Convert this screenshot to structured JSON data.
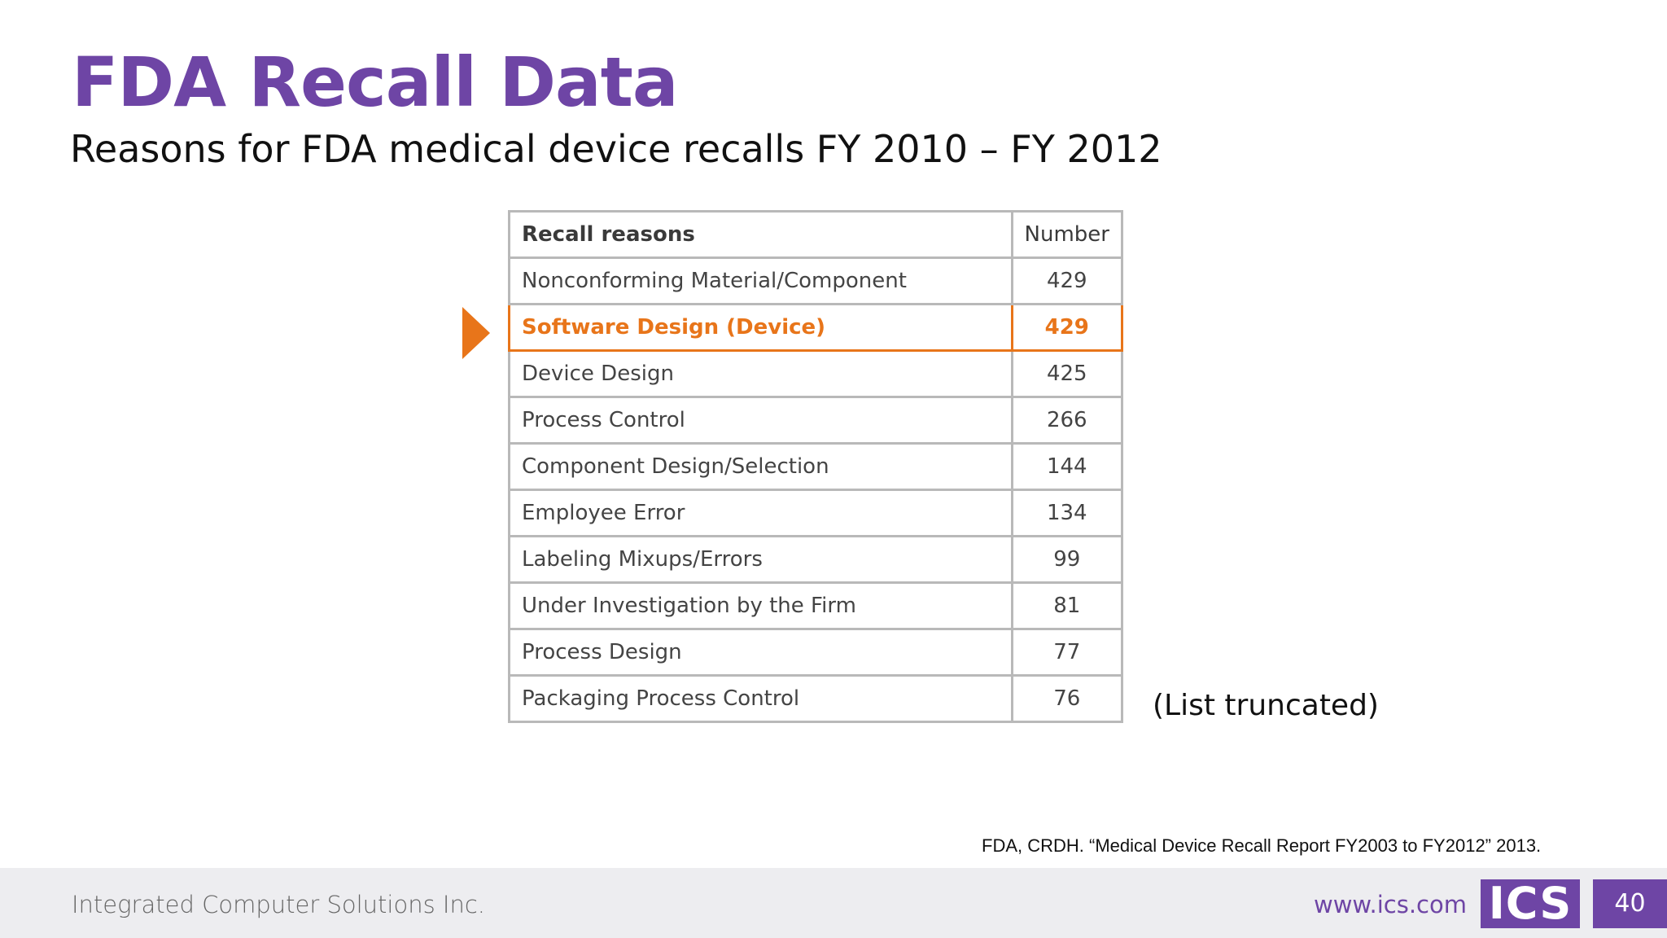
{
  "slide": {
    "title": "FDA Recall Data",
    "subtitle": "Reasons for FDA medical device recalls FY 2010 – FY 2012"
  },
  "table": {
    "headers": [
      "Recall reasons",
      "Number"
    ],
    "rows": [
      {
        "reason": "Nonconforming Material/Component",
        "number": "429"
      },
      {
        "reason": "Software Design (Device)",
        "number": "429"
      },
      {
        "reason": "Device Design",
        "number": "425"
      },
      {
        "reason": "Process Control",
        "number": "266"
      },
      {
        "reason": "Component Design/Selection",
        "number": "144"
      },
      {
        "reason": "Employee Error",
        "number": "134"
      },
      {
        "reason": "Labeling Mixups/Errors",
        "number": "99"
      },
      {
        "reason": "Under Investigation by the Firm",
        "number": "81"
      },
      {
        "reason": "Process Design",
        "number": "77"
      },
      {
        "reason": "Packaging Process Control",
        "number": "76"
      }
    ],
    "highlight_color": "#e8751a"
  },
  "note": "(List truncated)",
  "citation": "FDA, CRDH. “Medical Device Recall Report FY2003 to FY2012” 2013.",
  "footer": {
    "company": "Integrated Computer Solutions Inc.",
    "website": "www.ics.com",
    "logo": "ICS",
    "page_number": "40"
  },
  "colors": {
    "accent": "#6e45a5",
    "highlight": "#e8751a",
    "footer_bg": "#ededf0"
  },
  "icons": [
    "pointer-arrow-icon"
  ]
}
